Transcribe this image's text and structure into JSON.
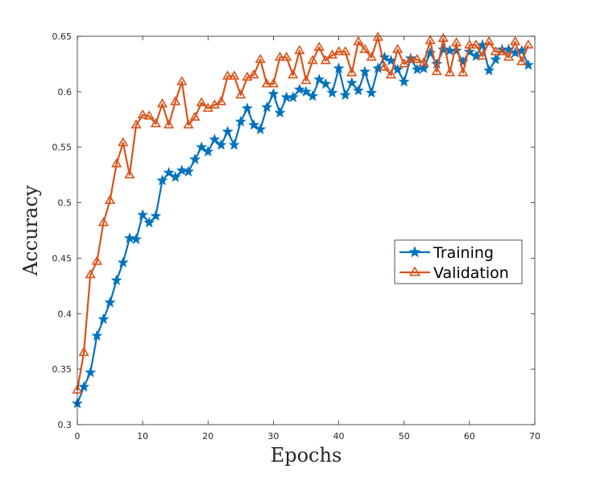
{
  "chart_data": {
    "type": "line",
    "title": "",
    "xlabel": "Epochs",
    "ylabel": "Accuracy",
    "xlim": [
      0,
      70
    ],
    "ylim": [
      0.3,
      0.65
    ],
    "xticks": [
      0,
      10,
      20,
      30,
      40,
      50,
      60,
      70
    ],
    "xtick_labels": [
      "0",
      "10",
      "20",
      "30",
      "40",
      "50",
      "60",
      "70"
    ],
    "yticks": [
      0.3,
      0.35,
      0.4,
      0.45,
      0.5,
      0.55,
      0.6,
      0.65
    ],
    "ytick_labels": [
      "0.3",
      "0.35",
      "0.4",
      "0.45",
      "0.5",
      "0.55",
      "0.6",
      "0.65"
    ],
    "grid": false,
    "legend_position": "right",
    "x": [
      0,
      1,
      2,
      3,
      4,
      5,
      6,
      7,
      8,
      9,
      10,
      11,
      12,
      13,
      14,
      15,
      16,
      17,
      18,
      19,
      20,
      21,
      22,
      23,
      24,
      25,
      26,
      27,
      28,
      29,
      30,
      31,
      32,
      33,
      34,
      35,
      36,
      37,
      38,
      39,
      40,
      41,
      42,
      43,
      44,
      45,
      46,
      47,
      48,
      49,
      50,
      51,
      52,
      53,
      54,
      55,
      56,
      57,
      58,
      59,
      60,
      61,
      62,
      63,
      64,
      65,
      66,
      67,
      68,
      69
    ],
    "series": [
      {
        "name": "Training",
        "color": "#0072BD",
        "marker": "star",
        "values": [
          0.319,
          0.334,
          0.347,
          0.38,
          0.395,
          0.41,
          0.43,
          0.446,
          0.468,
          0.467,
          0.489,
          0.482,
          0.488,
          0.52,
          0.527,
          0.523,
          0.529,
          0.528,
          0.539,
          0.55,
          0.546,
          0.557,
          0.552,
          0.564,
          0.552,
          0.573,
          0.585,
          0.57,
          0.566,
          0.586,
          0.598,
          0.581,
          0.595,
          0.595,
          0.602,
          0.6,
          0.596,
          0.611,
          0.607,
          0.599,
          0.621,
          0.597,
          0.608,
          0.601,
          0.618,
          0.599,
          0.621,
          0.631,
          0.628,
          0.62,
          0.609,
          0.63,
          0.62,
          0.621,
          0.635,
          0.625,
          0.638,
          0.637,
          0.637,
          0.627,
          0.636,
          0.632,
          0.642,
          0.619,
          0.629,
          0.638,
          0.638,
          0.635,
          0.637,
          0.624
        ]
      },
      {
        "name": "Validation",
        "color": "#D95319",
        "marker": "triangle",
        "values": [
          0.331,
          0.365,
          0.435,
          0.447,
          0.482,
          0.502,
          0.535,
          0.554,
          0.525,
          0.57,
          0.579,
          0.578,
          0.571,
          0.589,
          0.57,
          0.591,
          0.609,
          0.57,
          0.577,
          0.59,
          0.585,
          0.588,
          0.591,
          0.614,
          0.614,
          0.597,
          0.613,
          0.615,
          0.629,
          0.607,
          0.607,
          0.631,
          0.631,
          0.615,
          0.637,
          0.61,
          0.628,
          0.64,
          0.628,
          0.633,
          0.636,
          0.636,
          0.617,
          0.645,
          0.638,
          0.631,
          0.649,
          0.622,
          0.615,
          0.638,
          0.625,
          0.629,
          0.629,
          0.626,
          0.646,
          0.618,
          0.648,
          0.617,
          0.644,
          0.617,
          0.642,
          0.642,
          0.632,
          0.645,
          0.636,
          0.636,
          0.631,
          0.645,
          0.627,
          0.642
        ]
      }
    ]
  }
}
